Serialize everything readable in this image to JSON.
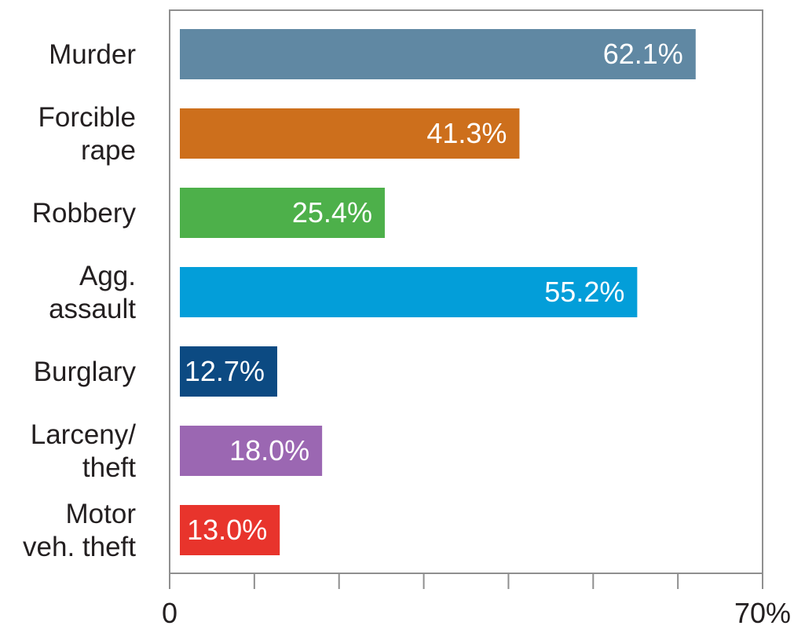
{
  "chart_data": {
    "type": "bar",
    "orientation": "horizontal",
    "categories": [
      [
        "Murder"
      ],
      [
        "Forcible",
        "rape"
      ],
      [
        "Robbery"
      ],
      [
        "Agg.",
        "assault"
      ],
      [
        "Burglary"
      ],
      [
        "Larceny/",
        "theft"
      ],
      [
        "Motor",
        "veh. theft"
      ]
    ],
    "values": [
      62.1,
      41.3,
      25.4,
      55.2,
      12.7,
      18.0,
      13.0
    ],
    "value_labels": [
      "62.1%",
      "41.3%",
      "25.4%",
      "55.2%",
      "12.7%",
      "18.0%",
      "13.0%"
    ],
    "colors": [
      "#6088a3",
      "#cd6f1c",
      "#4db04a",
      "#039ed9",
      "#0c4a82",
      "#9b67b2",
      "#e8342c"
    ],
    "xlim": [
      0,
      70
    ],
    "tick_count": 7,
    "tick_labels": [
      "0",
      "70%"
    ],
    "grid": false,
    "legend": "none"
  }
}
